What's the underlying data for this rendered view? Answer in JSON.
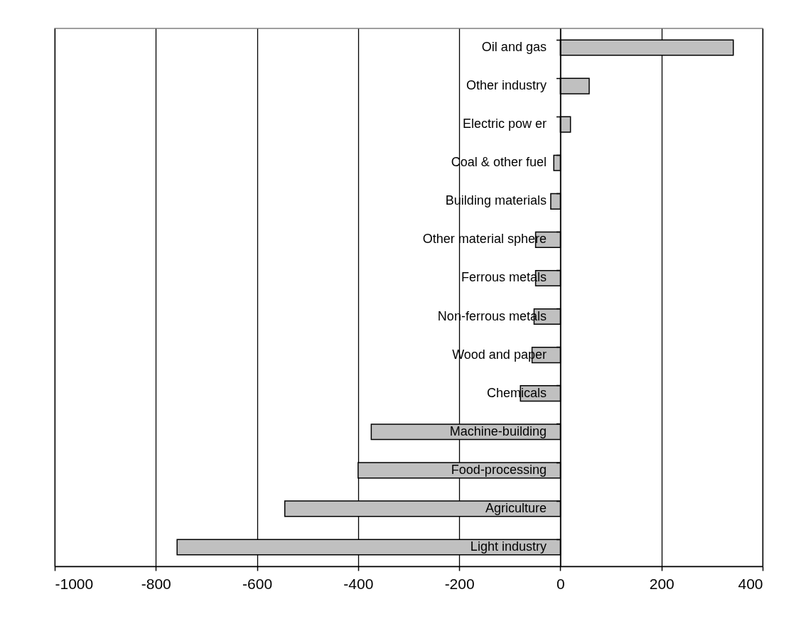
{
  "chart_data": {
    "type": "bar",
    "orientation": "horizontal",
    "categories": [
      "Oil and gas",
      "Other industry",
      "Electric pow er",
      "Coal & other fuel",
      "Building materials",
      "Other material sphere",
      "Ferrous metals",
      "Non-ferrous metals",
      "Wood and paper",
      "Chemicals",
      "Machine-building",
      "Food-processing",
      "Agriculture",
      "Light industry"
    ],
    "values": [
      342,
      57,
      20,
      -13,
      -19,
      -49,
      -49,
      -52,
      -56,
      -79,
      -374,
      -400,
      -545,
      -758
    ],
    "color": "#c0c0c0",
    "xlim": [
      -1000,
      400
    ],
    "xticks": [
      -1000,
      -800,
      -600,
      -400,
      -200,
      0,
      200,
      400
    ],
    "grid": "x"
  }
}
